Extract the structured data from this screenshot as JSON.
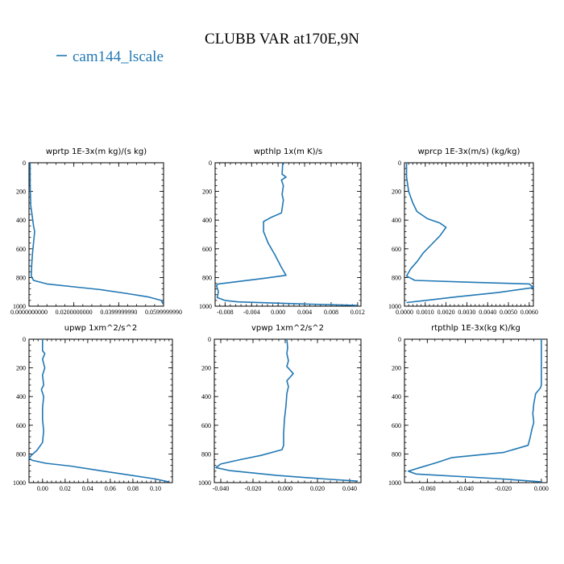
{
  "title": "CLUBB VAR at170E,9N",
  "legend": {
    "label": "cam144_lscale",
    "color": "#2178b4"
  },
  "chart_data": [
    {
      "type": "line",
      "title": "wprtp  1E-3x(m kg)/(s kg)",
      "xlim": [
        0,
        0.06
      ],
      "ylim": [
        1000,
        0
      ],
      "xticks": [
        0,
        0.02,
        0.04,
        0.06
      ],
      "xtick_labels": [
        "0.0000000000",
        "0.0200000000",
        "0.0399999990",
        "0.0599999990"
      ],
      "yticks": [
        0,
        200,
        400,
        600,
        800,
        1000
      ],
      "ytick_labels": [
        "0",
        "200",
        "400",
        "600",
        "800",
        "1000"
      ],
      "series": [
        {
          "points": [
            [
              0.0005,
              0
            ],
            [
              0.0005,
              150
            ],
            [
              0.0008,
              300
            ],
            [
              0.0015,
              380
            ],
            [
              0.002,
              440
            ],
            [
              0.0025,
              480
            ],
            [
              0.002,
              560
            ],
            [
              0.0015,
              640
            ],
            [
              0.0012,
              720
            ],
            [
              0.001,
              790
            ],
            [
              0.002,
              820
            ],
            [
              0.008,
              845
            ],
            [
              0.02,
              865
            ],
            [
              0.032,
              885
            ],
            [
              0.043,
              910
            ],
            [
              0.053,
              935
            ],
            [
              0.059,
              960
            ],
            [
              0.0598,
              985
            ]
          ]
        }
      ]
    },
    {
      "type": "line",
      "title": "wpthlp  1x(m K)/s",
      "xlim": [
        -0.0095,
        0.0125
      ],
      "ylim": [
        1000,
        0
      ],
      "xticks": [
        -0.008,
        -0.004,
        0,
        0.004,
        0.008,
        0.012
      ],
      "xtick_labels": [
        "-0.008",
        "-0.004",
        "0.000",
        "0.004",
        "0.008",
        "0.012"
      ],
      "yticks": [
        0,
        200,
        400,
        600,
        800,
        1000
      ],
      "ytick_labels": [
        "0",
        "200",
        "400",
        "600",
        "800",
        "1000"
      ],
      "series": [
        {
          "points": [
            [
              0.0007,
              0
            ],
            [
              0.0006,
              80
            ],
            [
              0.0012,
              100
            ],
            [
              0.0005,
              120
            ],
            [
              0.0008,
              160
            ],
            [
              0.0006,
              220
            ],
            [
              0.0008,
              260
            ],
            [
              0.0006,
              320
            ],
            [
              0.0005,
              350
            ],
            [
              -0.001,
              380
            ],
            [
              -0.0022,
              410
            ],
            [
              -0.0022,
              480
            ],
            [
              -0.0015,
              560
            ],
            [
              -0.0005,
              640
            ],
            [
              0.0005,
              730
            ],
            [
              0.0012,
              785
            ],
            [
              -0.002,
              805
            ],
            [
              -0.009,
              845
            ],
            [
              -0.0093,
              855
            ],
            [
              -0.009,
              900
            ],
            [
              -0.0092,
              940
            ],
            [
              -0.008,
              960
            ],
            [
              -0.006,
              970
            ],
            [
              0.004,
              985
            ],
            [
              0.012,
              995
            ]
          ]
        }
      ]
    },
    {
      "type": "line",
      "title": "wprcp  1E-3x(m/s) (kg/kg)",
      "xlim": [
        0,
        0.0062
      ],
      "ylim": [
        1000,
        0
      ],
      "xticks": [
        0,
        0.001,
        0.002,
        0.003,
        0.004,
        0.005,
        0.006
      ],
      "xtick_labels": [
        "0.0000",
        "0.0010",
        "0.0020",
        "0.0030",
        "0.0040",
        "0.0050",
        "0.0060"
      ],
      "yticks": [
        0,
        200,
        400,
        600,
        800,
        1000
      ],
      "ytick_labels": [
        "0",
        "200",
        "400",
        "600",
        "800",
        "1000"
      ],
      "series": [
        {
          "points": [
            [
              0.0001,
              0
            ],
            [
              0.0001,
              100
            ],
            [
              0.0002,
              200
            ],
            [
              0.0004,
              280
            ],
            [
              0.0006,
              340
            ],
            [
              0.0011,
              390
            ],
            [
              0.0017,
              420
            ],
            [
              0.002,
              450
            ],
            [
              0.0017,
              510
            ],
            [
              0.0013,
              570
            ],
            [
              0.0009,
              630
            ],
            [
              0.0006,
              690
            ],
            [
              0.0003,
              740
            ],
            [
              0.0001,
              790
            ],
            [
              0.0005,
              820
            ],
            [
              0.0035,
              835
            ],
            [
              0.006,
              845
            ],
            [
              0.0062,
              870
            ],
            [
              0.0045,
              905
            ],
            [
              0.0025,
              935
            ],
            [
              0.001,
              960
            ],
            [
              0.0001,
              975
            ]
          ]
        }
      ]
    },
    {
      "type": "line",
      "title": "upwp   1xm^2/s^2",
      "xlim": [
        -0.012,
        0.115
      ],
      "ylim": [
        1000,
        0
      ],
      "xticks": [
        0,
        0.02,
        0.04,
        0.06,
        0.08,
        0.1
      ],
      "xtick_labels": [
        "0.00",
        "0.02",
        "0.04",
        "0.06",
        "0.08",
        "0.10"
      ],
      "yticks": [
        0,
        200,
        400,
        600,
        800,
        1000
      ],
      "ytick_labels": [
        "0",
        "200",
        "400",
        "600",
        "800",
        "1000"
      ],
      "series": [
        {
          "points": [
            [
              0.0,
              0
            ],
            [
              0.0,
              80
            ],
            [
              0.002,
              100
            ],
            [
              0.0,
              140
            ],
            [
              0.002,
              200
            ],
            [
              0.0,
              250
            ],
            [
              0.001,
              320
            ],
            [
              -0.001,
              350
            ],
            [
              0.001,
              400
            ],
            [
              0.0,
              480
            ],
            [
              0.0,
              560
            ],
            [
              0.001,
              640
            ],
            [
              0.0,
              720
            ],
            [
              -0.005,
              775
            ],
            [
              -0.01,
              810
            ],
            [
              -0.012,
              830
            ],
            [
              -0.009,
              845
            ],
            [
              0.003,
              865
            ],
            [
              0.025,
              885
            ],
            [
              0.05,
              915
            ],
            [
              0.075,
              945
            ],
            [
              0.1,
              975
            ],
            [
              0.112,
              995
            ]
          ]
        }
      ]
    },
    {
      "type": "line",
      "title": "vpwp   1xm^2/s^2",
      "xlim": [
        -0.044,
        0.047
      ],
      "ylim": [
        1000,
        0
      ],
      "xticks": [
        -0.04,
        -0.02,
        0,
        0.02,
        0.04
      ],
      "xtick_labels": [
        "-0.040",
        "-0.020",
        "0.000",
        "0.020",
        "0.040"
      ],
      "yticks": [
        0,
        200,
        400,
        600,
        800,
        1000
      ],
      "ytick_labels": [
        "0",
        "200",
        "400",
        "600",
        "800",
        "1000"
      ],
      "series": [
        {
          "points": [
            [
              0.001,
              0
            ],
            [
              0.0015,
              60
            ],
            [
              0.001,
              100
            ],
            [
              0.002,
              150
            ],
            [
              0.001,
              190
            ],
            [
              0.005,
              240
            ],
            [
              0.001,
              290
            ],
            [
              0.002,
              330
            ],
            [
              0.001,
              380
            ],
            [
              0.0005,
              460
            ],
            [
              -0.0005,
              560
            ],
            [
              -0.001,
              660
            ],
            [
              -0.001,
              740
            ],
            [
              -0.002,
              770
            ],
            [
              -0.015,
              810
            ],
            [
              -0.028,
              840
            ],
            [
              -0.04,
              870
            ],
            [
              -0.043,
              895
            ],
            [
              -0.035,
              915
            ],
            [
              -0.005,
              950
            ],
            [
              0.025,
              975
            ],
            [
              0.045,
              990
            ]
          ]
        }
      ]
    },
    {
      "type": "line",
      "title": "rtpthlp   1E-3x(kg K)/kg",
      "xlim": [
        -0.072,
        0.003
      ],
      "ylim": [
        1000,
        0
      ],
      "xticks": [
        -0.06,
        -0.04,
        -0.02,
        0
      ],
      "xtick_labels": [
        "-0.060",
        "-0.040",
        "-0.020",
        "0.000"
      ],
      "yticks": [
        0,
        200,
        400,
        600,
        800,
        1000
      ],
      "ytick_labels": [
        "0",
        "200",
        "400",
        "600",
        "800",
        "1000"
      ],
      "series": [
        {
          "points": [
            [
              0.0,
              0
            ],
            [
              0.0,
              320
            ],
            [
              -0.0005,
              340
            ],
            [
              -0.003,
              380
            ],
            [
              -0.004,
              450
            ],
            [
              -0.0045,
              520
            ],
            [
              -0.004,
              580
            ],
            [
              -0.005,
              630
            ],
            [
              -0.006,
              690
            ],
            [
              -0.007,
              740
            ],
            [
              -0.02,
              790
            ],
            [
              -0.047,
              825
            ],
            [
              -0.055,
              860
            ],
            [
              -0.065,
              900
            ],
            [
              -0.07,
              920
            ],
            [
              -0.066,
              940
            ],
            [
              -0.02,
              975
            ],
            [
              0.0,
              995
            ]
          ]
        }
      ]
    }
  ]
}
